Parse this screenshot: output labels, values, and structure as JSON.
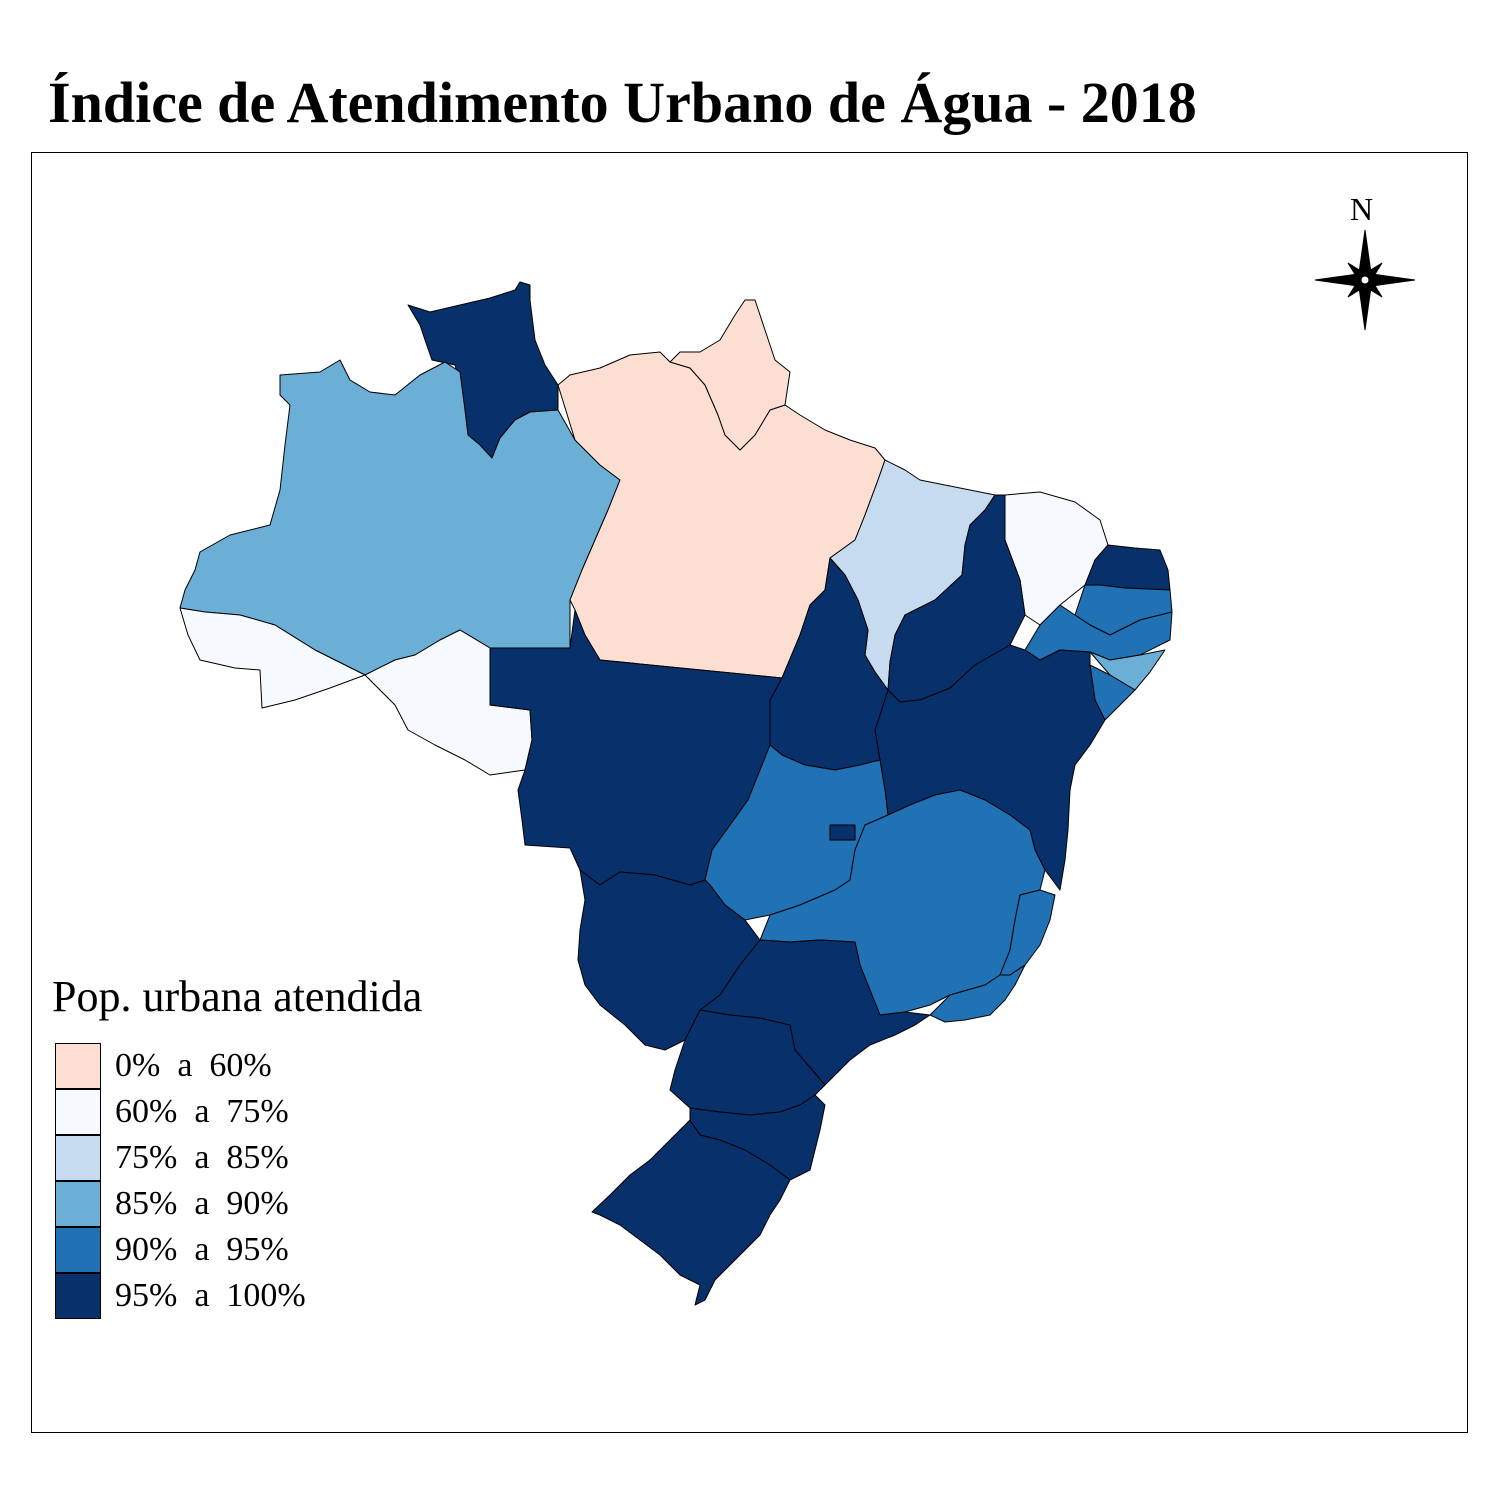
{
  "title": "Índice de Atendimento Urbano de Água - 2018",
  "legend": {
    "title": "Pop. urbana atendida",
    "items": [
      {
        "label": "0%  a  60%",
        "color": "#fcdfd2"
      },
      {
        "label": "60%  a  75%",
        "color": "#f6faff"
      },
      {
        "label": "75%  a  85%",
        "color": "#c6dbef"
      },
      {
        "label": "85%  a  90%",
        "color": "#6baed6"
      },
      {
        "label": "90%  a  95%",
        "color": "#2171b5"
      },
      {
        "label": "95%  a  100%",
        "color": "#08306b"
      }
    ]
  },
  "north_arrow": {
    "label": "N",
    "icon": "compass-rose-icon"
  },
  "regions": [
    {
      "code": "RR",
      "class": 5
    },
    {
      "code": "AM",
      "class": 3
    },
    {
      "code": "AC",
      "class": 1
    },
    {
      "code": "RO",
      "class": 1
    },
    {
      "code": "PA",
      "class": 0
    },
    {
      "code": "AP",
      "class": 0
    },
    {
      "code": "MA",
      "class": 2
    },
    {
      "code": "PI",
      "class": 5
    },
    {
      "code": "CE",
      "class": 1
    },
    {
      "code": "RN",
      "class": 5
    },
    {
      "code": "PB",
      "class": 4
    },
    {
      "code": "PE",
      "class": 4
    },
    {
      "code": "AL",
      "class": 3
    },
    {
      "code": "SE",
      "class": 4
    },
    {
      "code": "BA",
      "class": 5
    },
    {
      "code": "TO",
      "class": 5
    },
    {
      "code": "MT",
      "class": 5
    },
    {
      "code": "GO",
      "class": 4
    },
    {
      "code": "DF",
      "class": 5
    },
    {
      "code": "MG",
      "class": 4
    },
    {
      "code": "ES",
      "class": 4
    },
    {
      "code": "RJ",
      "class": 4
    },
    {
      "code": "MS",
      "class": 5
    },
    {
      "code": "SP",
      "class": 5
    },
    {
      "code": "PR",
      "class": 5
    },
    {
      "code": "SC",
      "class": 5
    },
    {
      "code": "RS",
      "class": 5
    }
  ]
}
